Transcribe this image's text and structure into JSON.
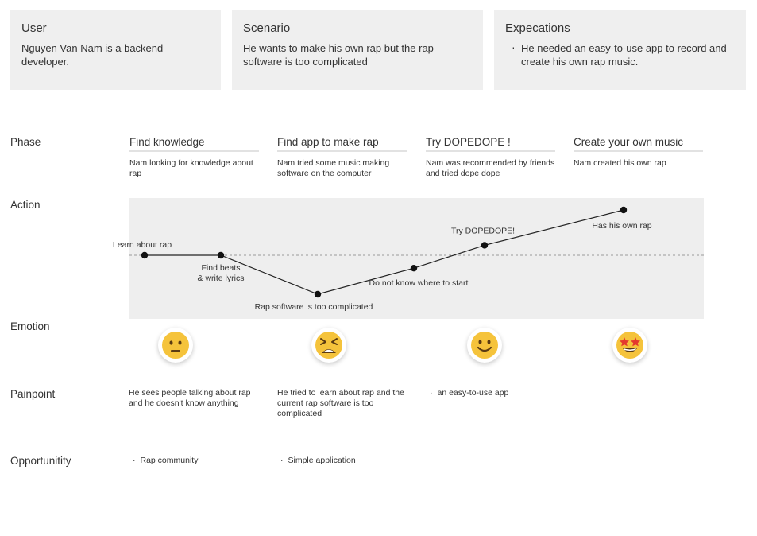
{
  "cards": [
    {
      "title": "User",
      "body": "Nguyen Van Nam is a backend developer."
    },
    {
      "title": "Scenario",
      "body": "He wants to make his own rap but the rap software is too complicated"
    },
    {
      "title": "Expecations",
      "body": "He needed an easy-to-use app to record and create his own rap music."
    }
  ],
  "row_labels": {
    "phase": "Phase",
    "action": "Action",
    "emotion": "Emotion",
    "painpoint": "Painpoint",
    "opportunity": "Opportunitity"
  },
  "phases": [
    {
      "title": "Find knowledge",
      "desc": "Nam looking for knowledge about rap"
    },
    {
      "title": "Find app to make rap",
      "desc": "Nam tried some music making software on the computer"
    },
    {
      "title": "Try DOPEDOPE !",
      "desc": "Nam was recommended by friends and tried dope dope"
    },
    {
      "title": "Create your own music",
      "desc": "Nam created his own rap"
    }
  ],
  "action_points": [
    {
      "label": "Learn about rap",
      "level": 0
    },
    {
      "label": "Find beats\n& write lyrics",
      "level": 0
    },
    {
      "label": "Rap software is too complicated",
      "level": -1
    },
    {
      "label": "Do not know where to start",
      "level": -0.33
    },
    {
      "label": "Try DOPEDOPE!",
      "level": 0.22
    },
    {
      "label": "Has his own rap",
      "level": 1
    }
  ],
  "emotions": [
    {
      "name": "neutral-face-icon",
      "color": "#f5c33b"
    },
    {
      "name": "tired-face-icon",
      "color": "#f5c33b"
    },
    {
      "name": "smiling-face-icon",
      "color": "#f5c33b"
    },
    {
      "name": "star-struck-face-icon",
      "color": "#f5c33b"
    }
  ],
  "painpoints": [
    "He sees people talking about rap and he doesn't know anything",
    "He tried to learn about rap and the current rap software is too complicated"
  ],
  "painpoint_bullets": [
    "an easy-to-use app"
  ],
  "opportunities": [
    "Rap community",
    "Simple application"
  ],
  "colors": {
    "card_bg": "#efefef",
    "action_bg": "#eeeeee",
    "line": "#222222",
    "emoji": "#f5c33b"
  }
}
